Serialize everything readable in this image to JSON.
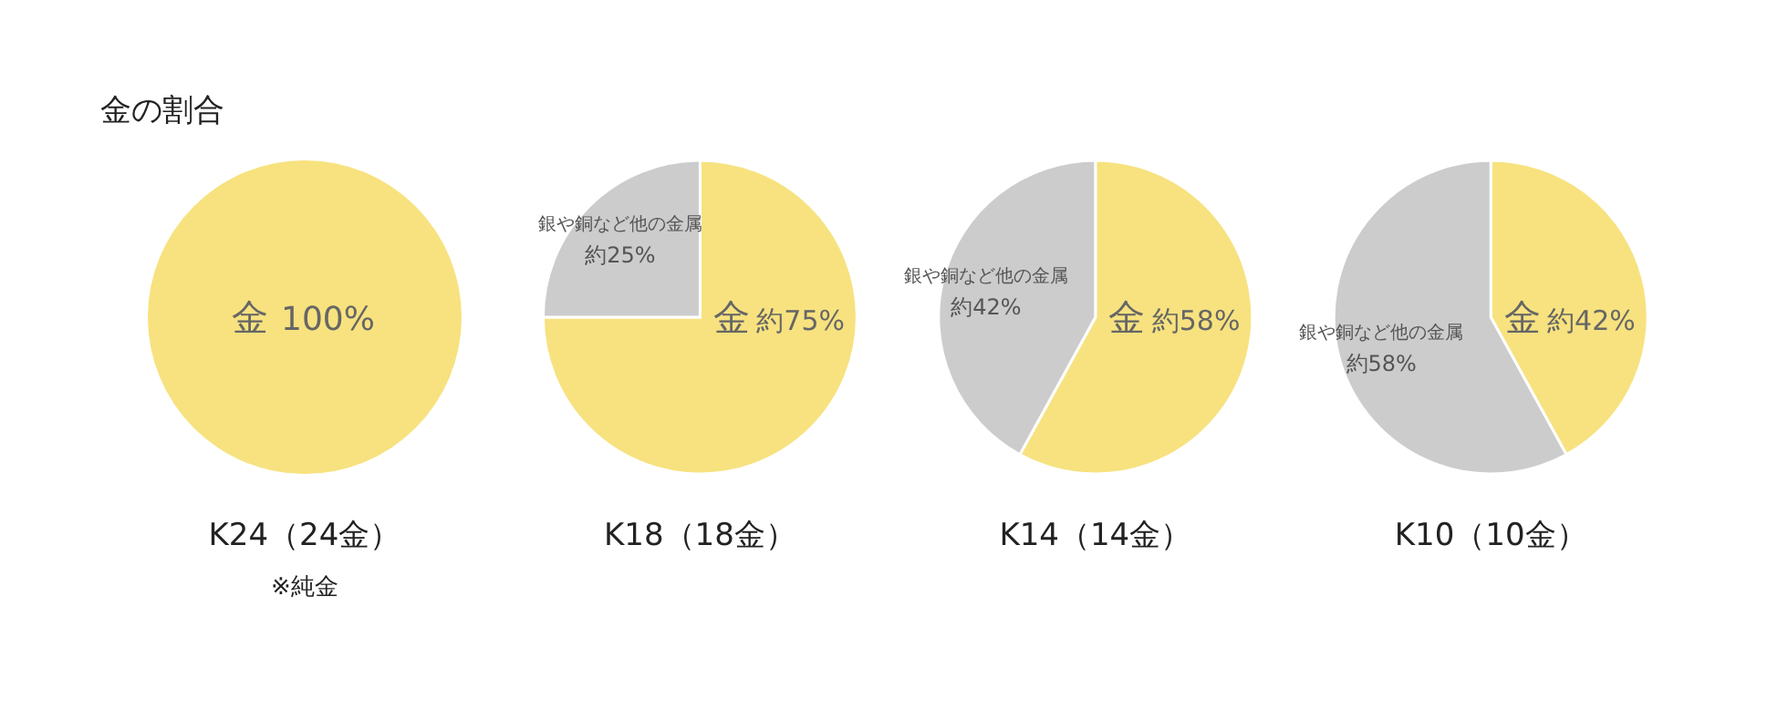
{
  "chart_data": [
    {
      "type": "pie",
      "title": "金の割合",
      "categories": [
        "金"
      ],
      "values": [
        100
      ],
      "colors": [
        "#f7e27f"
      ],
      "value_labels": [
        "100%"
      ],
      "xlabel": "K24（24金）",
      "annotations": [
        "※純金"
      ]
    },
    {
      "type": "pie",
      "categories": [
        "金",
        "銀や銅など他の金属"
      ],
      "values": [
        75,
        25
      ],
      "colors": [
        "#f7e27f",
        "#cccccc"
      ],
      "value_labels": [
        "約75%",
        "約25%"
      ],
      "xlabel": "K18（18金）"
    },
    {
      "type": "pie",
      "categories": [
        "金",
        "銀や銅など他の金属"
      ],
      "values": [
        58,
        42
      ],
      "colors": [
        "#f7e27f",
        "#cccccc"
      ],
      "value_labels": [
        "約58%",
        "約42%"
      ],
      "xlabel": "K14（14金）"
    },
    {
      "type": "pie",
      "categories": [
        "金",
        "銀や銅など他の金属"
      ],
      "values": [
        42,
        58
      ],
      "colors": [
        "#f7e27f",
        "#cccccc"
      ],
      "value_labels": [
        "約42%",
        "約58%"
      ],
      "xlabel": "K10（10金）"
    }
  ]
}
